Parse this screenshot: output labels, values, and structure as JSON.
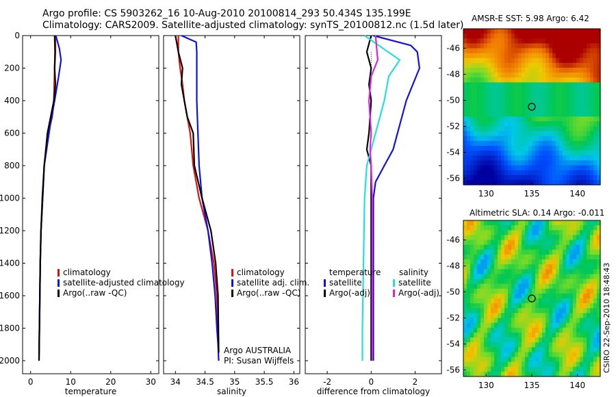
{
  "header": {
    "line1": "Argo profile: CS 5903262_16 10-Aug-2010 20100814_293 50.434S 135.199E",
    "line2": "Climatology: CARS2009. Satellite-adjusted climatology: synTS_20100812.nc (1.5d later)"
  },
  "stamp": "CSIRO 22-Sep-2010 18:48:43",
  "colors": {
    "climatology": "#e01010",
    "satellite": "#1010e0",
    "argo": "#000000",
    "cyan": "#20e0e0",
    "magenta": "#e020e0"
  },
  "chart_data": [
    {
      "type": "line",
      "name": "temperature-panel",
      "xlabel": "temperature",
      "ylabel": "",
      "xlim": [
        -2,
        32
      ],
      "ylim": [
        2080,
        0
      ],
      "y_reversed": true,
      "xticks": [
        0,
        10,
        20,
        30
      ],
      "yticks": [
        0,
        200,
        400,
        600,
        800,
        1000,
        1200,
        1400,
        1600,
        1800,
        2000
      ],
      "legend": {
        "position": "bottom-left",
        "entries": [
          "climatology",
          "satellite-adjusted climatology",
          "Argo(..raw -QC)"
        ]
      },
      "series": [
        {
          "name": "climatology",
          "color": "#e01010",
          "x": [
            6.2,
            6.2,
            6.0,
            5.8,
            5.4,
            4.4,
            3.4,
            3.0,
            2.6,
            2.4,
            2.3,
            2.2,
            2.1
          ],
          "y": [
            0,
            100,
            200,
            400,
            500,
            600,
            800,
            1000,
            1200,
            1400,
            1600,
            1800,
            1950
          ]
        },
        {
          "name": "satellite-adjusted climatology",
          "color": "#1010e0",
          "x": [
            6.3,
            7.2,
            7.6,
            7.0,
            6.0,
            4.9,
            3.4,
            2.9,
            2.6,
            2.4,
            2.3,
            2.2,
            2.1
          ],
          "y": [
            0,
            80,
            150,
            250,
            400,
            550,
            800,
            1000,
            1200,
            1400,
            1600,
            1800,
            2000
          ]
        },
        {
          "name": "Argo(..raw -QC)",
          "color": "#000000",
          "x": [
            6.0,
            6.1,
            6.0,
            6.2,
            5.8,
            5.0,
            4.2,
            3.4,
            3.0,
            2.6,
            2.4,
            2.3,
            2.2,
            2.1
          ],
          "y": [
            0,
            100,
            200,
            300,
            400,
            500,
            600,
            800,
            1000,
            1200,
            1400,
            1600,
            1800,
            2000
          ]
        }
      ]
    },
    {
      "type": "line",
      "name": "salinity-panel",
      "xlabel": "salinity",
      "ylabel": "",
      "xlim": [
        33.8,
        36.1
      ],
      "ylim": [
        2080,
        0
      ],
      "y_reversed": true,
      "xticks": [
        34,
        34.5,
        35,
        35.5,
        36
      ],
      "yticks": [
        0,
        200,
        400,
        600,
        800,
        1000,
        1200,
        1400,
        1600,
        1800,
        2000
      ],
      "legend": {
        "position": "bottom-left",
        "entries": [
          "climatology",
          "satellite adj. clim.",
          "Argo(..raw -QC)"
        ]
      },
      "annotation": [
        "Argo AUSTRALIA",
        "PI: Susan Wijffels"
      ],
      "series": [
        {
          "name": "climatology",
          "color": "#e01010",
          "x": [
            34.05,
            34.05,
            34.08,
            34.12,
            34.15,
            34.2,
            34.25,
            34.3,
            34.4,
            34.55,
            34.65,
            34.7,
            34.72,
            34.73
          ],
          "y": [
            0,
            100,
            200,
            300,
            400,
            500,
            600,
            800,
            1000,
            1200,
            1400,
            1600,
            1800,
            1950
          ]
        },
        {
          "name": "satellite adj. clim.",
          "color": "#1010e0",
          "x": [
            34.1,
            34.35,
            34.36,
            34.36,
            34.36,
            34.38,
            34.4,
            34.45,
            34.55,
            34.62,
            34.67,
            34.7,
            34.72,
            34.73
          ],
          "y": [
            0,
            40,
            100,
            200,
            400,
            600,
            800,
            1000,
            1200,
            1400,
            1600,
            1800,
            1900,
            2000
          ]
        },
        {
          "name": "Argo(..raw -QC)",
          "color": "#000000",
          "x": [
            34.0,
            34.05,
            34.12,
            34.1,
            34.15,
            34.2,
            34.3,
            34.32,
            34.45,
            34.6,
            34.68,
            34.72,
            34.73
          ],
          "y": [
            0,
            100,
            200,
            300,
            400,
            500,
            600,
            800,
            1000,
            1200,
            1400,
            1600,
            1950
          ]
        }
      ]
    },
    {
      "type": "line",
      "name": "difference-panel",
      "xlabel": "difference from climatology",
      "ylabel": "",
      "xlim": [
        -3,
        3.2
      ],
      "ylim": [
        2080,
        0
      ],
      "y_reversed": true,
      "xticks": [
        -2,
        0,
        2
      ],
      "yticks": [
        0,
        200,
        400,
        600,
        800,
        1000,
        1200,
        1400,
        1600,
        1800,
        2000
      ],
      "legend": {
        "position": "bottom-left",
        "headers": [
          "temperature",
          "salinity"
        ],
        "entries": [
          "satellite",
          "Argo(-adj)",
          "satellite",
          "Argo(-adj)"
        ]
      },
      "series": [
        {
          "name": "temperature satellite",
          "color": "#1010e0",
          "x": [
            0.1,
            1.8,
            2.1,
            2.2,
            1.6,
            1.0,
            0.6,
            0.2,
            0.1,
            0.1,
            0.1,
            0.1,
            0.1
          ],
          "y": [
            0,
            60,
            100,
            200,
            400,
            700,
            800,
            900,
            1000,
            1200,
            1500,
            1800,
            2000
          ]
        },
        {
          "name": "temperature Argo(-adj)",
          "color": "#000000",
          "x": [
            0,
            -0.2,
            0.0,
            -0.1,
            0.0,
            -0.1,
            -0.2,
            0.0,
            0.0,
            0.0,
            0.0
          ],
          "y": [
            0,
            100,
            200,
            300,
            400,
            600,
            700,
            800,
            1000,
            1500,
            2000
          ]
        },
        {
          "name": "salinity satellite",
          "color": "#20e0e0",
          "x": [
            -0.3,
            1.3,
            0.8,
            0.6,
            0.4,
            0.2,
            -0.2,
            -0.3,
            -0.35,
            -0.4,
            -0.4
          ],
          "y": [
            0,
            150,
            250,
            400,
            500,
            600,
            800,
            1000,
            1400,
            1800,
            2000
          ]
        },
        {
          "name": "salinity Argo(-adj)",
          "color": "#e020e0",
          "x": [
            0.2,
            0.3,
            0.0,
            -0.1,
            0.0,
            -0.05,
            0.0,
            0.05,
            0.05,
            0.05
          ],
          "y": [
            0,
            150,
            250,
            400,
            600,
            700,
            800,
            1000,
            1500,
            2000
          ]
        }
      ]
    },
    {
      "type": "heatmap",
      "name": "sst-map",
      "title": "AMSR-E SST: 5.98 Argo: 6.42",
      "xlim": [
        127.5,
        142.5
      ],
      "ylim": [
        -56.5,
        -44.5
      ],
      "xticks": [
        130,
        135,
        140
      ],
      "yticks": [
        -46,
        -48,
        -50,
        -52,
        -54,
        -56
      ],
      "marker": {
        "lon": 135,
        "lat": -50.5
      }
    },
    {
      "type": "heatmap",
      "name": "sla-map",
      "title": "Altimetric SLA: 0.14 Argo: -0.011",
      "xlim": [
        127.5,
        142.5
      ],
      "ylim": [
        -56.5,
        -44.5
      ],
      "xticks": [
        130,
        135,
        140
      ],
      "yticks": [
        -46,
        -48,
        -50,
        -52,
        -54,
        -56
      ],
      "marker": {
        "lon": 135,
        "lat": -50.5
      }
    }
  ]
}
